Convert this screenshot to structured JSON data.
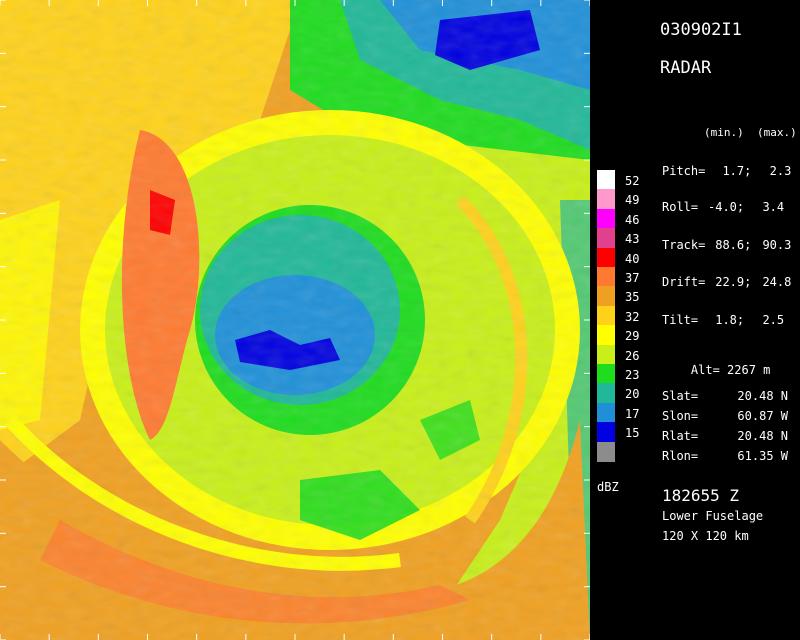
{
  "header": {
    "flight_id": "030902I1",
    "instrument": "RADAR",
    "minmax_label": "(min.)  (max.)"
  },
  "params": [
    {
      "label": "Pitch=",
      "min": "1.7;",
      "max": "2.3"
    },
    {
      "label": "Roll=",
      "min": "-4.0;",
      "max": "3.4"
    },
    {
      "label": "Track=",
      "min": "88.6;",
      "max": "90.3"
    },
    {
      "label": "Drift=",
      "min": "22.9;",
      "max": "24.8"
    },
    {
      "label": "Tilt=",
      "min": "1.8;",
      "max": "2.5"
    }
  ],
  "alt": {
    "label": "Alt=",
    "value": "2267 m"
  },
  "position": [
    {
      "label": "Slat=",
      "value": "20.48 N"
    },
    {
      "label": "Slon=",
      "value": "60.87 W"
    },
    {
      "label": "Rlat=",
      "value": "20.48 N"
    },
    {
      "label": "Rlon=",
      "value": "61.35 W"
    }
  ],
  "footer": {
    "time": "182655 Z",
    "antenna": "Lower Fuselage",
    "domain": "120 X 120 km"
  },
  "legend": {
    "unit": "dBZ",
    "levels": [
      {
        "value": "52",
        "color": "#ffffff"
      },
      {
        "value": "49",
        "color": "#ff99cc"
      },
      {
        "value": "46",
        "color": "#ff00ff"
      },
      {
        "value": "43",
        "color": "#e0408c"
      },
      {
        "value": "40",
        "color": "#ff0000"
      },
      {
        "value": "37",
        "color": "#ff7a30"
      },
      {
        "value": "35",
        "color": "#f0a020"
      },
      {
        "value": "32",
        "color": "#ffd21a"
      },
      {
        "value": "29",
        "color": "#ffff00"
      },
      {
        "value": "26",
        "color": "#c8f018"
      },
      {
        "value": "23",
        "color": "#1edc1e"
      },
      {
        "value": "20",
        "color": "#20b898"
      },
      {
        "value": "17",
        "color": "#1f90d8"
      },
      {
        "value": "15",
        "color": "#0000e0"
      },
      {
        "value": "",
        "color": "#8c8c8c"
      }
    ]
  }
}
